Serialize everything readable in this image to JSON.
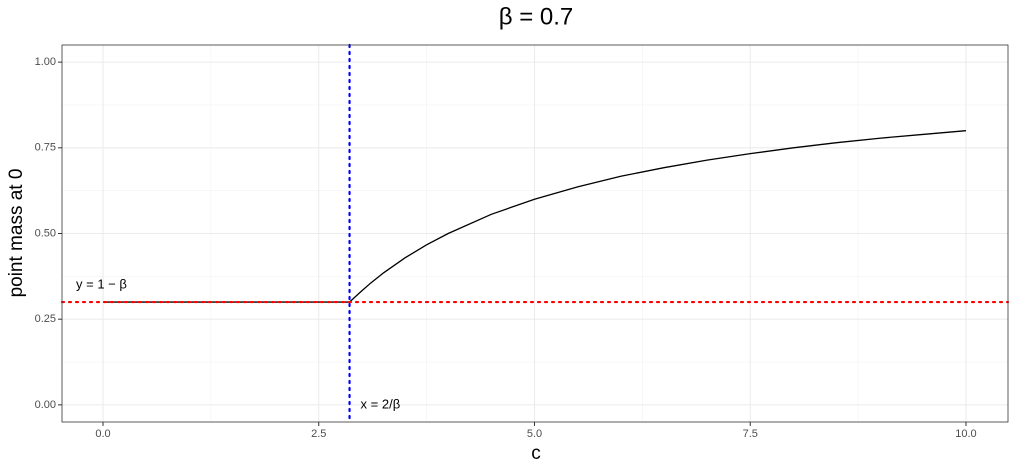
{
  "chart_data": {
    "type": "line",
    "title": "β = 0.7",
    "x_label": "c",
    "y_label": "point mass at 0",
    "xlim": [
      -0.475,
      10.487
    ],
    "ylim": [
      -0.05,
      1.05
    ],
    "xticks": [
      {
        "value": 0,
        "label": "0.0"
      },
      {
        "value": 2.5,
        "label": "2.5"
      },
      {
        "value": 5,
        "label": "5.0"
      },
      {
        "value": 7.5,
        "label": "7.5"
      },
      {
        "value": 10,
        "label": "10.0"
      }
    ],
    "yticks": [
      {
        "value": 0,
        "label": "0.00"
      },
      {
        "value": 0.25,
        "label": "0.25"
      },
      {
        "value": 0.5,
        "label": "0.50"
      },
      {
        "value": 0.75,
        "label": "0.75"
      },
      {
        "value": 1,
        "label": "1.00"
      }
    ],
    "grid": true,
    "x": [
      0,
      2.857,
      2.9,
      3,
      3.1,
      3.25,
      3.5,
      3.75,
      4,
      4.5,
      5,
      5.5,
      6,
      6.5,
      7,
      7.5,
      8,
      8.5,
      9,
      9.5,
      10
    ],
    "series": [
      {
        "color": "#000000",
        "values": [
          0.3,
          0.3,
          0.31,
          0.333,
          0.355,
          0.385,
          0.429,
          0.467,
          0.5,
          0.556,
          0.6,
          0.636,
          0.667,
          0.692,
          0.714,
          0.733,
          0.75,
          0.765,
          0.778,
          0.789,
          0.8
        ]
      }
    ],
    "hline": {
      "value": 0.3,
      "color": "#ff0000",
      "label": "y = 1 − β"
    },
    "vline": {
      "value": 2.857,
      "color": "#0000ff",
      "label": "x = 2/β"
    }
  }
}
